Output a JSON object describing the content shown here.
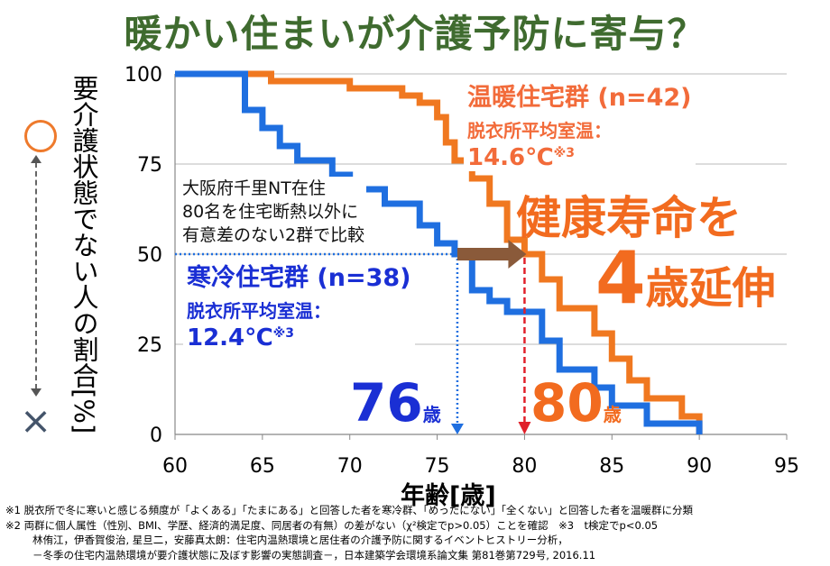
{
  "title": "暖かい住まいが介護予防に寄与？",
  "chart_data": {
    "type": "line",
    "xlabel": "年齢[歳]",
    "ylabel": "要介護状態でない人の割合[%]",
    "xlim": [
      60,
      95
    ],
    "ylim": [
      0,
      100
    ],
    "x_ticks": [
      "60",
      "65",
      "70",
      "75",
      "80",
      "85",
      "90",
      "95"
    ],
    "y_ticks": [
      "0",
      "25",
      "50",
      "75",
      "100"
    ],
    "grid": "horizontal",
    "series": [
      {
        "name": "温暖住宅群 (n=42)",
        "color": "#f07820",
        "points": [
          [
            60,
            100
          ],
          [
            65,
            100
          ],
          [
            65.5,
            100
          ],
          [
            65.5,
            98
          ],
          [
            70,
            98
          ],
          [
            70,
            96
          ],
          [
            73,
            96
          ],
          [
            73,
            94
          ],
          [
            74,
            94
          ],
          [
            74,
            92
          ],
          [
            75,
            92
          ],
          [
            75,
            88
          ],
          [
            75.5,
            88
          ],
          [
            75.5,
            81
          ],
          [
            76,
            81
          ],
          [
            76,
            76
          ],
          [
            77,
            76
          ],
          [
            77,
            71
          ],
          [
            78,
            71
          ],
          [
            78,
            64
          ],
          [
            79,
            64
          ],
          [
            79,
            54
          ],
          [
            80,
            54
          ],
          [
            80,
            50
          ],
          [
            81,
            50
          ],
          [
            81,
            43
          ],
          [
            82,
            43
          ],
          [
            82,
            35
          ],
          [
            84,
            35
          ],
          [
            84,
            28
          ],
          [
            85,
            28
          ],
          [
            85,
            21
          ],
          [
            86,
            21
          ],
          [
            86,
            15
          ],
          [
            87,
            15
          ],
          [
            87,
            10
          ],
          [
            89,
            10
          ],
          [
            89,
            5
          ],
          [
            90,
            5
          ],
          [
            90,
            0
          ]
        ]
      },
      {
        "name": "寒冷住宅群 (n=38)",
        "color": "#1f6fe0",
        "points": [
          [
            60,
            100
          ],
          [
            64,
            100
          ],
          [
            64,
            90
          ],
          [
            65,
            90
          ],
          [
            65,
            85
          ],
          [
            66,
            85
          ],
          [
            66,
            80
          ],
          [
            67,
            80
          ],
          [
            67,
            76
          ],
          [
            69,
            76
          ],
          [
            69,
            72
          ],
          [
            70,
            72
          ],
          [
            70,
            68
          ],
          [
            72,
            68
          ],
          [
            72,
            64
          ],
          [
            74,
            64
          ],
          [
            74,
            58
          ],
          [
            75,
            58
          ],
          [
            75,
            53
          ],
          [
            76,
            53
          ],
          [
            76,
            50
          ],
          [
            77,
            50
          ],
          [
            77,
            40
          ],
          [
            78,
            40
          ],
          [
            78,
            37
          ],
          [
            79,
            37
          ],
          [
            79,
            34
          ],
          [
            81,
            34
          ],
          [
            81,
            26
          ],
          [
            82,
            26
          ],
          [
            82,
            18
          ],
          [
            84,
            18
          ],
          [
            84,
            13
          ],
          [
            85,
            13
          ],
          [
            85,
            8
          ],
          [
            87,
            8
          ],
          [
            87,
            3
          ],
          [
            90,
            3
          ],
          [
            90,
            0
          ]
        ]
      }
    ],
    "annotations": {
      "median_cold": 76,
      "median_warm": 80,
      "median_level": 50
    }
  },
  "labels": {
    "warm_group": "温暖住宅群 (n=42)",
    "warm_sub": "脱衣所平均室温：",
    "warm_temp": "14.6℃",
    "warm_sup": "※3",
    "cold_group": "寒冷住宅群 (n=38)",
    "cold_sub": "脱衣所平均室温：",
    "cold_temp": "12.4℃",
    "cold_sup": "※3",
    "study_line1": "大阪府千里NT在住",
    "study_line2": "80名を住宅断熱以外に",
    "study_line3": "有意差のない2群で比較",
    "big_line1": "健康寿命を",
    "big_number": "4",
    "big_word": "歳延伸",
    "age_cold": "76",
    "age_warm": "80",
    "age_unit": "歳",
    "y_top_marker": "○",
    "y_bottom_marker": "×"
  },
  "notes": [
    "※1 脱衣所で冬に寒いと感じる頻度が「よくある」「たまにある」と回答した者を寒冷群、「めったにない」「全くない」と回答した者を温暖群に分類",
    "※2 両群に個人属性（性別、BMI、学歴、経済的満足度、同居者の有無）の差がない（χ²検定でp>0.05）ことを確認　※3　t検定でp<0.05",
    "林侑江，伊香賀俊治, 星旦二，安藤真太朗：住宅内温熱環境と居住者の介護予防に関するイベントヒストリー分析，",
    "－冬季の住宅内温熱環境が要介護状態に及ぼす影響の実態調査－，日本建築学会環境系論文集 第81巻第729号, 2016.11"
  ]
}
